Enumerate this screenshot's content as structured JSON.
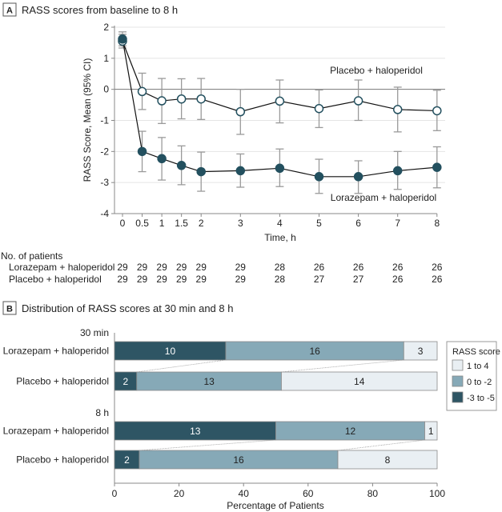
{
  "chart_data": [
    {
      "type": "line",
      "panel_label": "A",
      "title": "RASS scores from baseline to 8 h",
      "xlabel": "Time, h",
      "ylabel": "RASS Score, Mean (95% CI)",
      "ylim": [
        -4,
        2
      ],
      "yticks": [
        "2",
        "1",
        "0",
        "-1",
        "-2",
        "-3",
        "-4"
      ],
      "ytick_values": [
        2,
        1,
        0,
        -1,
        -2,
        -3,
        -4
      ],
      "x": [
        0,
        0.5,
        1,
        1.5,
        2,
        3,
        4,
        5,
        6,
        7,
        8
      ],
      "xtick_labels": [
        "0",
        "0.5",
        "1",
        "1.5",
        "2",
        "3",
        "4",
        "5",
        "6",
        "7",
        "8"
      ],
      "grid": true,
      "series": [
        {
          "name": "Placebo + haloperidol",
          "marker": "open-circle",
          "values": [
            1.55,
            -0.07,
            -0.37,
            -0.31,
            -0.31,
            -0.72,
            -0.38,
            -0.62,
            -0.37,
            -0.65,
            -0.69
          ],
          "ci_low": [
            1.33,
            -0.65,
            -1.1,
            -0.95,
            -0.97,
            -1.45,
            -1.08,
            -1.23,
            -1.0,
            -1.37,
            -1.33
          ],
          "ci_high": [
            1.77,
            0.52,
            0.35,
            0.34,
            0.35,
            0.0,
            0.3,
            -0.02,
            0.3,
            0.07,
            -0.03
          ]
        },
        {
          "name": "Lorazepam + haloperidol",
          "marker": "filled-circle",
          "values": [
            1.62,
            -2.0,
            -2.23,
            -2.45,
            -2.65,
            -2.62,
            -2.54,
            -2.81,
            -2.81,
            -2.62,
            -2.51
          ],
          "ci_low": [
            1.4,
            -2.65,
            -2.92,
            -3.07,
            -3.28,
            -3.15,
            -3.13,
            -3.35,
            -3.35,
            -3.22,
            -3.17
          ],
          "ci_high": [
            1.85,
            -1.35,
            -1.55,
            -1.82,
            -2.02,
            -2.08,
            -1.92,
            -2.25,
            -2.3,
            -2.0,
            -1.85
          ]
        }
      ],
      "annotations": [
        "Placebo + haloperidol",
        "Lorazepam + haloperidol"
      ],
      "patients_table": {
        "header": "No. of patients",
        "rows": [
          {
            "label": "Lorazepam + haloperidol",
            "values": [
              "29",
              "29",
              "29",
              "29",
              "29",
              "29",
              "28",
              "26",
              "26",
              "26",
              "26"
            ]
          },
          {
            "label": "Placebo + haloperidol",
            "values": [
              "29",
              "29",
              "29",
              "29",
              "29",
              "29",
              "28",
              "27",
              "27",
              "26",
              "26"
            ]
          }
        ]
      }
    },
    {
      "type": "bar",
      "orientation": "horizontal-stacked",
      "panel_label": "B",
      "title": "Distribution of RASS scores at 30 min and 8 h",
      "xlabel": "Percentage of Patients",
      "xlim": [
        0,
        100
      ],
      "xticks": [
        "0",
        "20",
        "40",
        "60",
        "80",
        "100"
      ],
      "xtick_values": [
        0,
        20,
        40,
        60,
        80,
        100
      ],
      "legend": {
        "title": "RASS score",
        "position": "right",
        "entries": [
          {
            "label": "1 to 4",
            "color": "#e9eff3"
          },
          {
            "label": "0 to -2",
            "color": "#86a9b7"
          },
          {
            "label": "-3 to -5",
            "color": "#2e5564"
          }
        ]
      },
      "groups": [
        {
          "label": "30 min",
          "bars": [
            {
              "label": "Lorazepam + haloperidol",
              "counts": {
                "-3 to -5": 10,
                "0 to -2": 16,
                "1 to 4": 3
              }
            },
            {
              "label": "Placebo + haloperidol",
              "counts": {
                "-3 to -5": 2,
                "0 to -2": 13,
                "1 to 4": 14
              }
            }
          ]
        },
        {
          "label": "8 h",
          "bars": [
            {
              "label": "Lorazepam + haloperidol",
              "counts": {
                "-3 to -5": 13,
                "0 to -2": 12,
                "1 to 4": 1
              }
            },
            {
              "label": "Placebo + haloperidol",
              "counts": {
                "-3 to -5": 2,
                "0 to -2": 16,
                "1 to 4": 8
              }
            }
          ]
        }
      ],
      "segment_order": [
        "-3 to -5",
        "0 to -2",
        "1 to 4"
      ]
    }
  ],
  "colors": {
    "dark": "#2e5564",
    "mid": "#86a9b7",
    "light": "#e9eff3",
    "marker": "#23505f",
    "grid": "#e4e4e4",
    "axis": "#888888",
    "errorbar": "#9a9a9a"
  }
}
